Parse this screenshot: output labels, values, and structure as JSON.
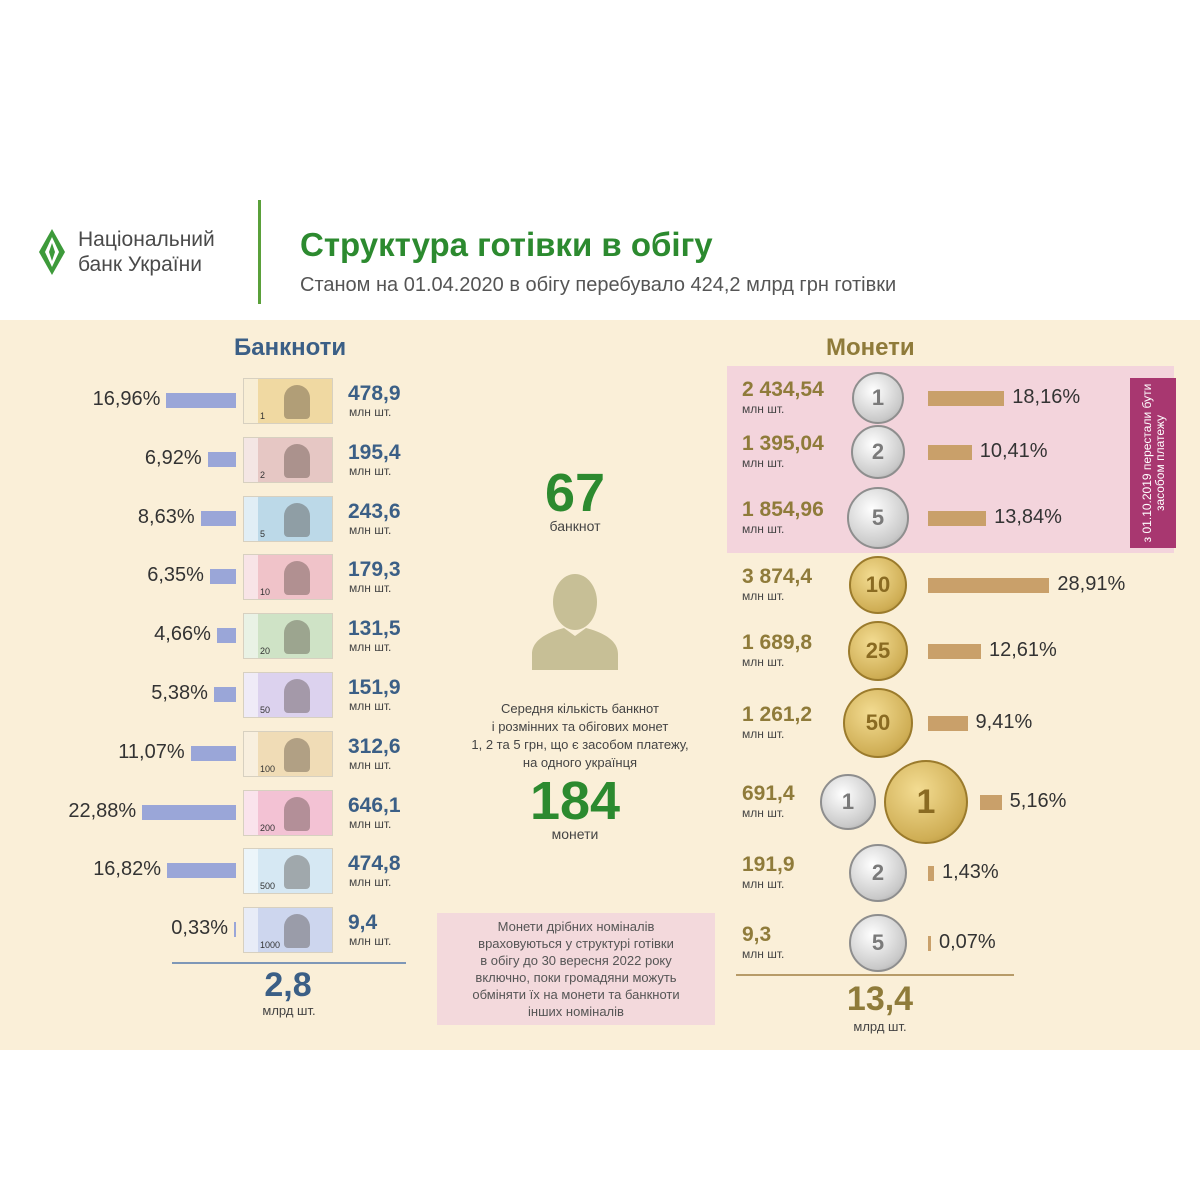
{
  "header": {
    "logo_line1": "Національний",
    "logo_line2": "банк України",
    "title": "Структура готівки в обігу",
    "subtitle": "Станом на 01.04.2020 в обігу перебувало 424,2 млрд грн готівки"
  },
  "banknotes": {
    "title": "Банкноти",
    "unit": "млн шт.",
    "total": "2,8",
    "total_unit": "млрд шт."
  },
  "coins": {
    "title": "Монети",
    "unit": "млн шт.",
    "total": "13,4",
    "total_unit": "млрд шт.",
    "withdrawn_note": "з 01.10.2019 перестали бути засобом платежу"
  },
  "center": {
    "banknotes_avg": "67",
    "banknotes_avg_unit": "банкнот",
    "desc_lines": [
      "Середня кількість банкнот",
      "і  розмінних та обігових монет",
      "1, 2 та 5 грн, що є засобом платежу,",
      "на одного українця"
    ],
    "coins_avg": "184",
    "coins_avg_unit": "монети",
    "note_lines": [
      "Монети дрібних номіналів",
      "враховуються у структурі готівки",
      "в  обігу  до 30 вересня 2022 року",
      "включно, поки громадяни можуть",
      "обміняти їх  на монети та банкноти",
      "інших номіналів"
    ]
  },
  "chart_data": [
    {
      "type": "bar",
      "orientation": "horizontal",
      "series": [
        {
          "categories": [
            "1",
            "2",
            "5",
            "10",
            "20",
            "50",
            "100",
            "200",
            "500",
            "1000"
          ],
          "values": [
            16.96,
            6.92,
            8.63,
            6.35,
            4.66,
            5.38,
            11.07,
            22.88,
            16.82,
            0.33
          ],
          "percent_labels": [
            "16,96%",
            "6,92%",
            "8,63%",
            "6,35%",
            "4,66%",
            "5,38%",
            "11,07%",
            "22,88%",
            "16,82%",
            "0,33%"
          ],
          "count_labels": [
            "478,9",
            "195,4",
            "243,6",
            "179,3",
            "131,5",
            "151,9",
            "312,6",
            "646,1",
            "474,8",
            "9,4"
          ]
        }
      ],
      "colors": [
        "#9aa6d8"
      ],
      "note_colors": [
        "#f0d9a2",
        "#e6c7c4",
        "#bcd9e8",
        "#f0c3c9",
        "#cfe3c6",
        "#dcd2ee",
        "#f0dcb6",
        "#f3c2d4",
        "#d6e8f3",
        "#cdd6ee"
      ]
    },
    {
      "type": "bar",
      "orientation": "horizontal",
      "series": [
        {
          "categories": [
            "1",
            "2",
            "5",
            "10",
            "25",
            "50",
            "1 грн",
            "2 грн",
            "5 грн"
          ],
          "values": [
            18.16,
            10.41,
            13.84,
            28.91,
            12.61,
            9.41,
            5.16,
            1.43,
            0.07
          ],
          "percent_labels": [
            "18,16%",
            "10,41%",
            "13,84%",
            "28,91%",
            "12,61%",
            "9,41%",
            "5,16%",
            "1,43%",
            "0,07%"
          ],
          "count_labels": [
            "2 434,54",
            "1 395,04",
            "1 854,96",
            "3 874,4",
            "1 689,8",
            "1 261,2",
            "691,4",
            "191,9",
            "9,3"
          ],
          "coin_labels": [
            "1",
            "2",
            "5",
            "10",
            "25",
            "50",
            "1",
            "2",
            "5"
          ],
          "coin_label_extra": "1"
        }
      ],
      "colors": [
        "#c9a06a"
      ],
      "coin_metals": [
        "silver",
        "silver",
        "silver",
        "gold",
        "gold",
        "gold",
        "silver",
        "silver",
        "silver"
      ],
      "withdrawn_highlight": "#f3d4dc"
    }
  ]
}
